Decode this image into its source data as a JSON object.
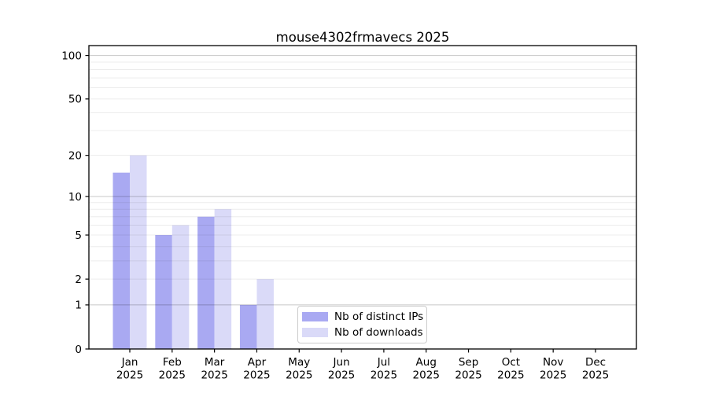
{
  "chart_data": {
    "type": "bar",
    "title": "mouse4302frmavecs 2025",
    "categories": [
      "Jan",
      "Feb",
      "Mar",
      "Apr",
      "May",
      "Jun",
      "Jul",
      "Aug",
      "Sep",
      "Oct",
      "Nov",
      "Dec"
    ],
    "x_tick_second_line": "2025",
    "series": [
      {
        "name": "Nb of distinct IPs",
        "color": "#a9a9f2",
        "values": [
          15,
          5,
          7,
          1,
          0,
          0,
          0,
          0,
          0,
          0,
          0,
          0
        ]
      },
      {
        "name": "Nb of downloads",
        "color": "#dadaf8",
        "values": [
          20,
          6,
          8,
          2,
          0,
          0,
          0,
          0,
          0,
          0,
          0,
          0
        ]
      }
    ],
    "y_axis": {
      "scale": "log1p",
      "ticks": [
        0,
        1,
        2,
        5,
        10,
        20,
        50,
        100
      ],
      "major_gridlines": [
        1,
        10,
        100
      ],
      "minor_gridlines": [
        2,
        3,
        4,
        5,
        6,
        7,
        8,
        9,
        20,
        30,
        40,
        50,
        60,
        70,
        80,
        90
      ],
      "max": 117
    },
    "grid": "both",
    "legend_position": "lower center",
    "colors": {
      "axis": "#000000",
      "tick_text": "#000000",
      "major_grid_rgba": "rgba(0,0,0,0.22)",
      "minor_grid_rgba": "rgba(0,0,0,0.075)"
    }
  }
}
